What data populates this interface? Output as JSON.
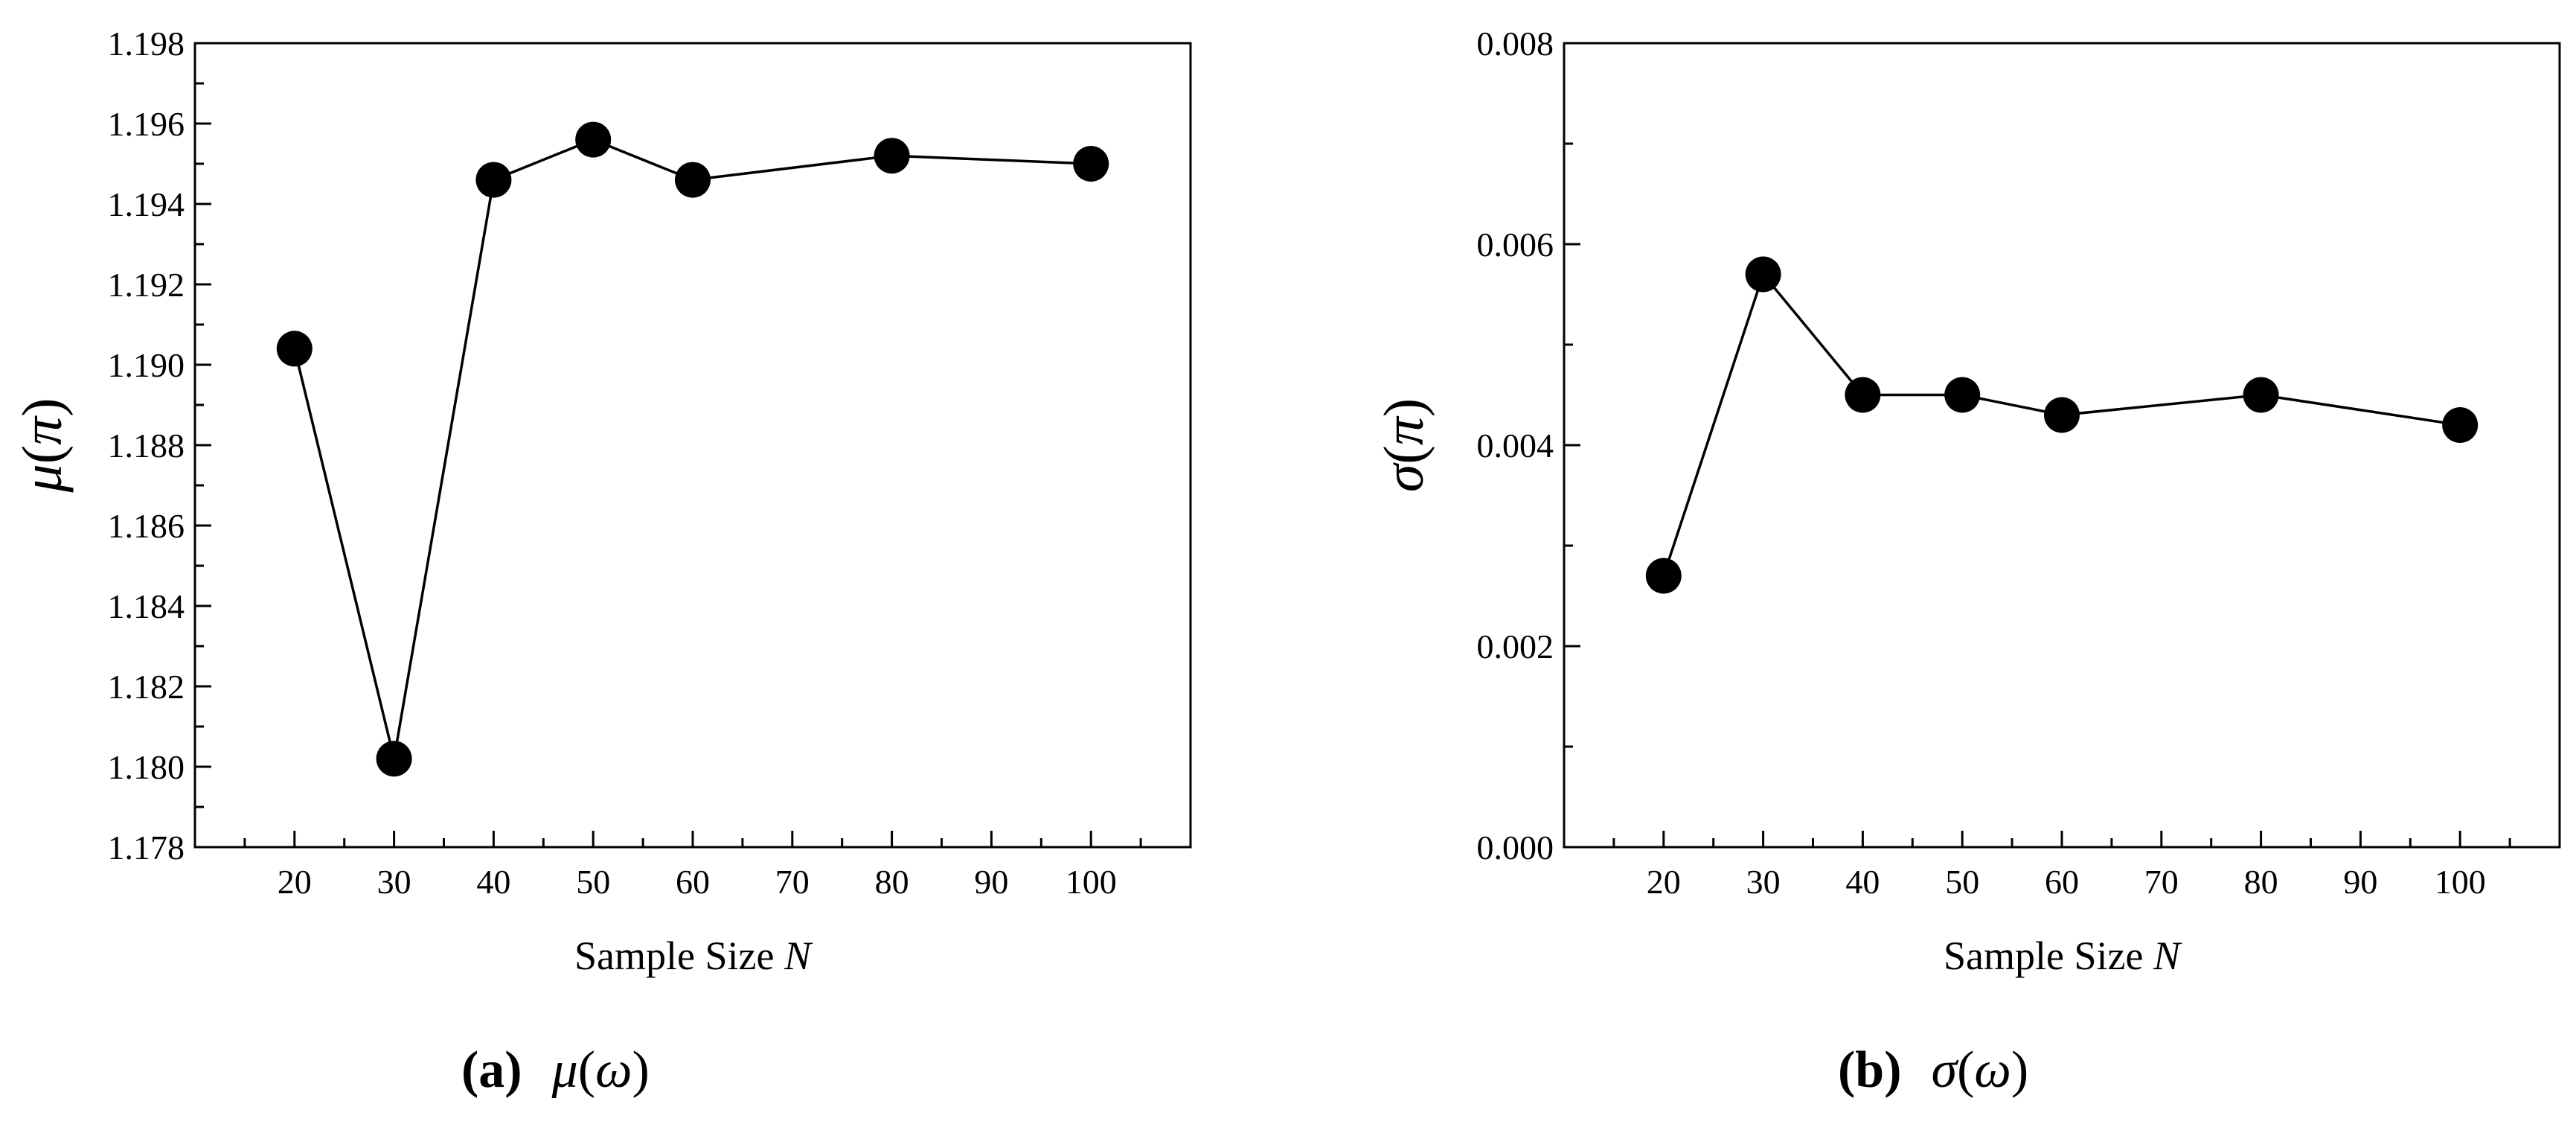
{
  "chart_data": [
    {
      "type": "line",
      "title": "",
      "xlabel": "Sample Size",
      "xlabel_var": "N",
      "ylabel_sym": "μ",
      "ylabel_arg": "π",
      "caption_letter": "(a)",
      "caption_sym": "μ",
      "caption_arg": "ω",
      "x": [
        20,
        30,
        40,
        50,
        60,
        80,
        100
      ],
      "values": [
        1.1904,
        1.1802,
        1.1946,
        1.1956,
        1.1946,
        1.1952,
        1.195
      ],
      "xlim": [
        10,
        110
      ],
      "ylim": [
        1.178,
        1.198
      ],
      "xticks": [
        "20",
        "30",
        "40",
        "50",
        "60",
        "70",
        "80",
        "90",
        "100"
      ],
      "yticks": [
        "1.178",
        "1.180",
        "1.182",
        "1.184",
        "1.186",
        "1.188",
        "1.190",
        "1.192",
        "1.194",
        "1.196",
        "1.198"
      ],
      "grid": false,
      "marker": "filled-circle",
      "color": "#000000"
    },
    {
      "type": "line",
      "title": "",
      "xlabel": "Sample Size",
      "xlabel_var": "N",
      "ylabel_sym": "σ",
      "ylabel_arg": "π",
      "caption_letter": "(b)",
      "caption_sym": "σ",
      "caption_arg": "ω",
      "x": [
        20,
        30,
        40,
        50,
        60,
        80,
        100
      ],
      "values": [
        0.0027,
        0.0057,
        0.0045,
        0.0045,
        0.0043,
        0.0045,
        0.0042
      ],
      "xlim": [
        10,
        110
      ],
      "ylim": [
        0.0,
        0.008
      ],
      "xticks": [
        "20",
        "30",
        "40",
        "50",
        "60",
        "70",
        "80",
        "90",
        "100"
      ],
      "yticks": [
        "0.000",
        "0.002",
        "0.004",
        "0.006",
        "0.008"
      ],
      "grid": false,
      "marker": "filled-circle",
      "color": "#000000"
    }
  ]
}
